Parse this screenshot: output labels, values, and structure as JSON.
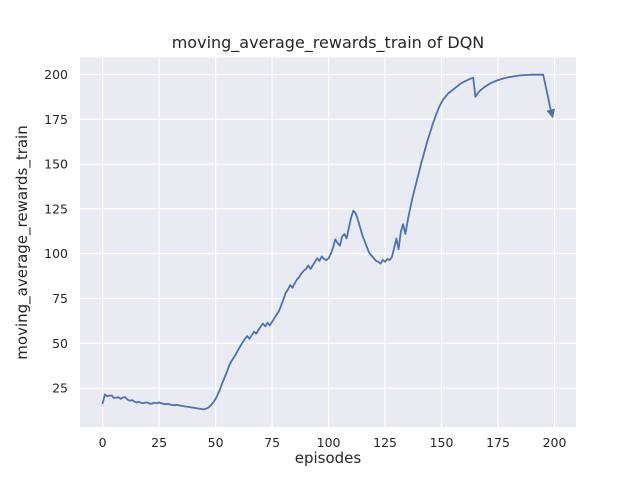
{
  "figure": {
    "background": "#ffffff"
  },
  "chart_data": {
    "type": "line",
    "title": "moving_average_rewards_train of DQN",
    "xlabel": "episodes",
    "ylabel": "moving_average_rewards_train",
    "x_ticks": [
      0,
      25,
      50,
      75,
      100,
      125,
      150,
      175,
      200
    ],
    "y_ticks": [
      25,
      50,
      75,
      100,
      125,
      150,
      175,
      200
    ],
    "xlim": [
      -10,
      209.5
    ],
    "ylim": [
      3.3,
      209.5
    ],
    "grid": true,
    "legend": null,
    "style": {
      "axes_bg": "#eaeaf2",
      "grid_color": "#ffffff",
      "grid_width": 1.2,
      "line_color": "#4c72b0",
      "line_width": 1.8,
      "text_color": "#262626",
      "end_arrow": true
    },
    "series": [
      {
        "name": "moving_average_rewards_train",
        "x_start": 0,
        "x_step": 1,
        "values": [
          16.5,
          21.5,
          20.5,
          20.8,
          20.9,
          19.5,
          19.7,
          19.9,
          19.0,
          19.8,
          19.9,
          18.6,
          18.0,
          18.3,
          17.6,
          17.0,
          17.3,
          16.8,
          16.6,
          17.0,
          16.9,
          16.2,
          16.4,
          16.9,
          16.5,
          17.0,
          16.5,
          16.2,
          16.0,
          16.2,
          15.8,
          15.6,
          15.4,
          15.7,
          15.3,
          15.1,
          14.9,
          14.7,
          14.5,
          14.3,
          14.1,
          13.9,
          13.7,
          13.5,
          13.3,
          13.2,
          13.6,
          14.3,
          15.5,
          17.0,
          19.0,
          21.5,
          24.5,
          28.0,
          31.0,
          34.0,
          37.5,
          40.0,
          42.0,
          44.0,
          46.5,
          48.5,
          50.5,
          52.5,
          54.0,
          52.5,
          54.5,
          56.5,
          55.5,
          57.5,
          59.5,
          61.0,
          59.5,
          61.5,
          60.0,
          62.0,
          64.0,
          66.0,
          68.0,
          71.0,
          74.5,
          78.0,
          80.0,
          82.5,
          81.0,
          83.5,
          85.5,
          87.0,
          89.0,
          90.5,
          91.5,
          93.5,
          91.5,
          93.5,
          95.5,
          97.5,
          96.0,
          98.5,
          97.0,
          96.5,
          97.5,
          100.0,
          103.5,
          108.0,
          106.0,
          104.5,
          109.5,
          111.0,
          108.5,
          114.5,
          120.5,
          124.0,
          122.5,
          119.0,
          114.5,
          110.0,
          107.0,
          103.5,
          100.5,
          99.0,
          97.5,
          96.0,
          95.5,
          94.5,
          96.5,
          95.5,
          97.0,
          96.5,
          98.0,
          103.0,
          108.5,
          102.5,
          112.5,
          116.5,
          111.0,
          118.5,
          124.5,
          130.5,
          135.5,
          140.5,
          145.5,
          150.5,
          155.0,
          159.5,
          164.0,
          168.0,
          172.0,
          175.5,
          179.0,
          182.0,
          184.5,
          186.5,
          188.0,
          189.5,
          190.5,
          191.5,
          192.5,
          193.5,
          194.5,
          195.3,
          196.0,
          196.6,
          197.2,
          197.7,
          198.2,
          187.6,
          189.5,
          191.0,
          192.0,
          193.0,
          193.8,
          194.6,
          195.3,
          195.9,
          196.4,
          196.9,
          197.3,
          197.7,
          198.0,
          198.3,
          198.6,
          198.8,
          199.0,
          199.2,
          199.4,
          199.5,
          199.6,
          199.7,
          199.8,
          199.8,
          199.9,
          199.9,
          199.9,
          199.9,
          199.9,
          199.9,
          194.0,
          188.0,
          182.0,
          177.0
        ]
      }
    ]
  }
}
